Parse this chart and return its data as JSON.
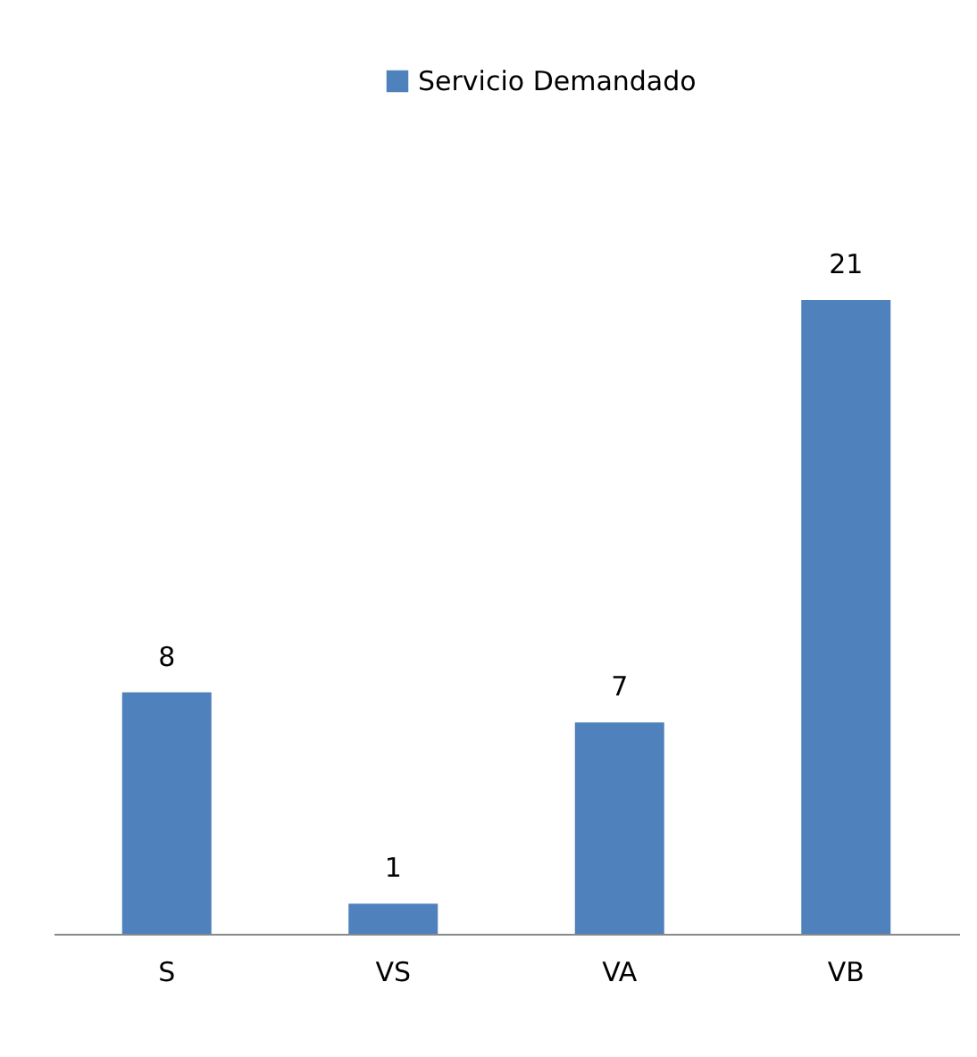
{
  "chart_data": {
    "type": "bar",
    "categories": [
      "S",
      "VS",
      "VA",
      "VB"
    ],
    "series": [
      {
        "name": "Servicio Demandado",
        "color": "#4f81bd",
        "values": [
          8,
          1,
          7,
          21
        ]
      }
    ],
    "data_labels": true,
    "legend": "top",
    "grid": false
  }
}
